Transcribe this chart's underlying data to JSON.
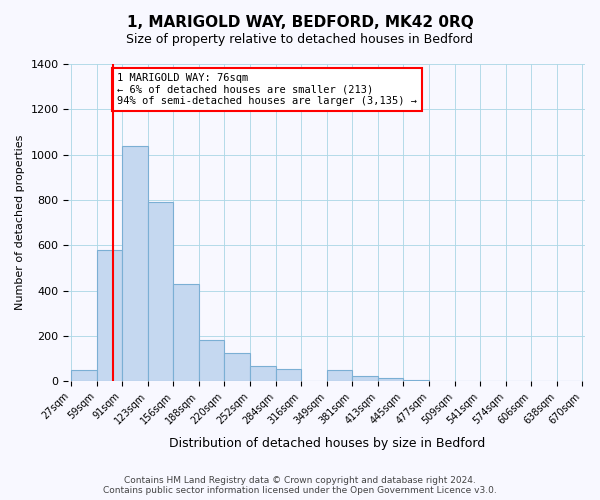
{
  "title": "1, MARIGOLD WAY, BEDFORD, MK42 0RQ",
  "subtitle": "Size of property relative to detached houses in Bedford",
  "xlabel": "Distribution of detached houses by size in Bedford",
  "ylabel": "Number of detached properties",
  "bin_edges_labels": [
    "27sqm",
    "59sqm",
    "91sqm",
    "123sqm",
    "156sqm",
    "188sqm",
    "220sqm",
    "252sqm",
    "284sqm",
    "316sqm",
    "349sqm",
    "381sqm",
    "413sqm",
    "445sqm",
    "477sqm",
    "509sqm",
    "541sqm",
    "574sqm",
    "606sqm",
    "638sqm",
    "670sqm"
  ],
  "bar_heights": [
    50,
    580,
    1040,
    790,
    430,
    180,
    125,
    65,
    55,
    0,
    50,
    25,
    15,
    5,
    0,
    0,
    0,
    0,
    0,
    0
  ],
  "bar_color": "#c5d8f0",
  "bar_edge_color": "#7bafd4",
  "vline_x": 1.65,
  "vline_color": "red",
  "annotation_text": "1 MARIGOLD WAY: 76sqm\n← 6% of detached houses are smaller (213)\n94% of semi-detached houses are larger (3,135) →",
  "annotation_box_color": "white",
  "annotation_box_edge": "red",
  "ylim": [
    0,
    1400
  ],
  "yticks": [
    0,
    200,
    400,
    600,
    800,
    1000,
    1200,
    1400
  ],
  "footer_line1": "Contains HM Land Registry data © Crown copyright and database right 2024.",
  "footer_line2": "Contains public sector information licensed under the Open Government Licence v3.0.",
  "bg_color": "#f8f8ff"
}
